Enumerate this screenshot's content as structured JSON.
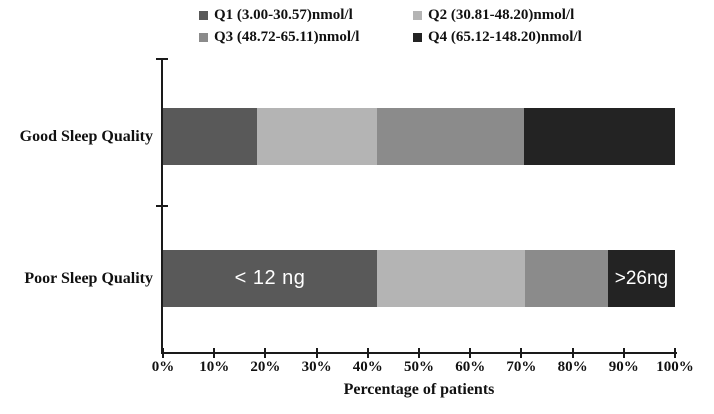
{
  "chart_data": {
    "type": "bar",
    "orientation": "horizontal-stacked",
    "title": "",
    "xlabel": "Percentage of patients",
    "ylabel": "",
    "xlim": [
      0,
      100
    ],
    "grid": false,
    "legend_position": "top",
    "axis_color": "#1a1a1a",
    "categories": [
      "Good Sleep Quality",
      "Poor Sleep Quality"
    ],
    "x_ticks": [
      "0%",
      "10%",
      "20%",
      "30%",
      "40%",
      "50%",
      "60%",
      "70%",
      "80%",
      "90%",
      "100%"
    ],
    "series": [
      {
        "name": "Q1 (3.00-30.57)nmol/l",
        "color": "#595959",
        "values": [
          18.3,
          41.8
        ]
      },
      {
        "name": "Q2 (30.81-48.20)nmol/l",
        "color": "#b4b4b4",
        "values": [
          23.5,
          29.0
        ]
      },
      {
        "name": "Q3 (48.72-65.11)nmol/l",
        "color": "#8b8b8b",
        "values": [
          28.7,
          16.1
        ]
      },
      {
        "name": "Q4 (65.12-148.20)nmol/l",
        "color": "#232323",
        "values": [
          29.5,
          13.1
        ]
      }
    ],
    "annotations": [
      {
        "category_index": 1,
        "series_index": 0,
        "text": "< 12 ng",
        "color": "#ffffff"
      },
      {
        "category_index": 1,
        "series_index": 3,
        "text": ">26ng",
        "color": "#ffffff"
      }
    ]
  }
}
